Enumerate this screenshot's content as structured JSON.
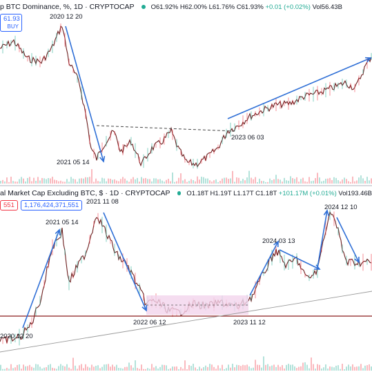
{
  "top": {
    "title": "p BTC Dominance, %",
    "interval": "1D",
    "source": "CRYPTOCAP",
    "title_sep": "·",
    "ohlc": {
      "o": "O61.92%",
      "h": "H62.00%",
      "l": "L61.76%",
      "c": "C61.93%",
      "chg": "+0.01 (+0.02%)",
      "vol": "Vol56.43B"
    },
    "buy_price": "61.93",
    "buy_label": "BUY",
    "annotations": {
      "peak": "2020 12 20",
      "low": "2021 05 14",
      "breakout": "2023 06 03"
    }
  },
  "bottom": {
    "title": "al Market Cap Excluding BTC, $",
    "interval": "1D",
    "source": "CRYPTOCAP",
    "ohlc": {
      "o": "O1.18T",
      "h": "H1.19T",
      "l": "L1.17T",
      "c": "C1.18T",
      "chg": "+101.17M (+0.01%)",
      "vol": "Vol193.46B"
    },
    "sell_price": "551",
    "buy_price": "1,176,424,371,551",
    "annotations": {
      "a1": "2020 12 20",
      "a2": "2021 05 14",
      "a3": "2021 11 08",
      "a4": "2022 06 12",
      "a5": "2023 11 12",
      "a6": "2024 03 13",
      "a7": "2024 12 10"
    }
  },
  "colors": {
    "up": "#22ab94",
    "down": "#f23645",
    "price": "#6b1d1d",
    "arrow": "#2f6fd6",
    "range": "#f3d4ec",
    "hline": "#8b1a1a"
  }
}
